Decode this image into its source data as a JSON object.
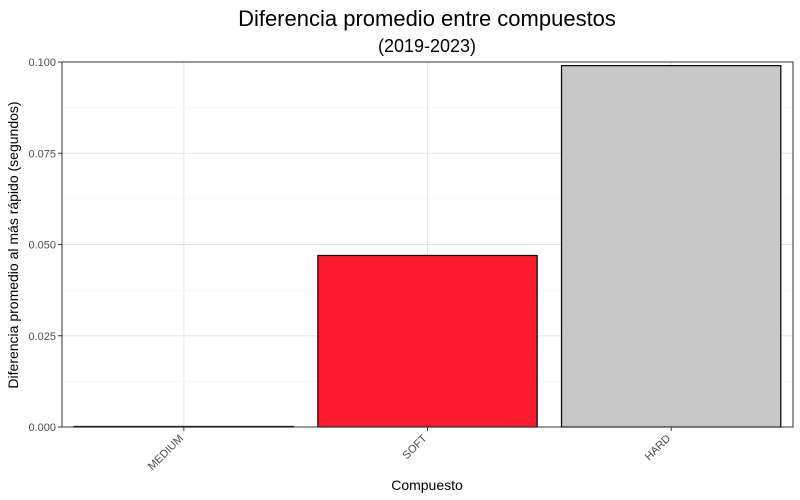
{
  "chart_data": {
    "type": "bar",
    "title": "Diferencia promedio entre compuestos",
    "subtitle": "(2019-2023)",
    "xlabel": "Compuesto",
    "ylabel": "Diferencia promedio al más rápido (segundos)",
    "categories": [
      "MEDIUM",
      "SOFT",
      "HARD"
    ],
    "values": [
      0.0,
      0.047,
      0.099
    ],
    "colors": [
      "#e8e8e8",
      "#ff1a2b",
      "#c8c8c8"
    ],
    "ylim": [
      0,
      0.1
    ],
    "yticks": [
      0,
      0.025,
      0.05,
      0.075,
      0.1
    ],
    "ytick_labels": [
      "0.000",
      "0.025",
      "0.050",
      "0.075",
      "0.100"
    ],
    "grid": true,
    "legend": "none"
  }
}
